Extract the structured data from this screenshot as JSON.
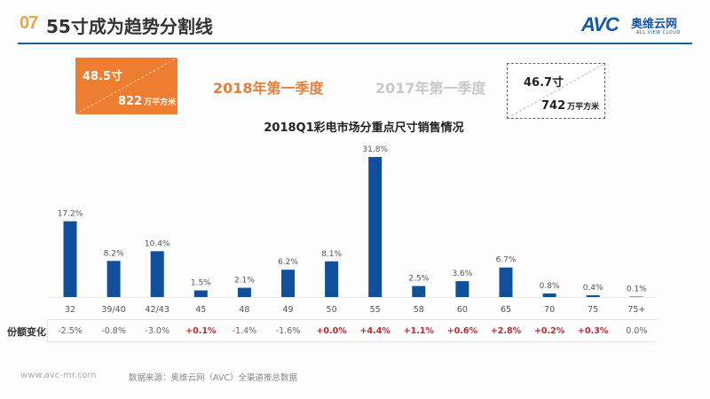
{
  "header": {
    "number": "07",
    "title": "55寸成为趋势分割线"
  },
  "logo": {
    "mark": "AVC",
    "name_cn": "奥维云网",
    "name_en": "ALL VIEW CLOUD"
  },
  "summary": {
    "q2018": {
      "label": "2018年第一季度",
      "avg_size": "48.5寸",
      "area_value": "822",
      "area_unit": "万平方米",
      "color": "#ed7d31"
    },
    "q2017": {
      "label": "2017年第一季度",
      "avg_size": "46.7寸",
      "area_value": "742",
      "area_unit": "万平方米"
    }
  },
  "chart_data": {
    "type": "bar",
    "title": "2018Q1彩电市场分重点尺寸销售情况",
    "xlabel": "",
    "ylabel": "",
    "ylim": [
      0,
      32
    ],
    "grid": false,
    "bar_color": "#0f4f9c",
    "categories": [
      "32",
      "39/40",
      "42/43",
      "45",
      "48",
      "49",
      "50",
      "55",
      "58",
      "60",
      "65",
      "70",
      "75",
      "75+"
    ],
    "values": [
      17.2,
      8.2,
      10.4,
      1.5,
      2.1,
      6.2,
      8.1,
      31.8,
      2.5,
      3.6,
      6.7,
      0.8,
      0.4,
      0.1
    ],
    "value_labels": [
      "17.2%",
      "8.2%",
      "10.4%",
      "1.5%",
      "2.1%",
      "6.2%",
      "8.1%",
      "31.8%",
      "2.5%",
      "3.6%",
      "6.7%",
      "0.8%",
      "0.4%",
      "0.1%"
    ],
    "share_change": {
      "label": "份额变化",
      "values": [
        -2.5,
        -0.8,
        -3.0,
        0.1,
        -1.4,
        -1.6,
        0.0,
        4.4,
        1.1,
        0.6,
        2.8,
        0.2,
        0.3,
        0.0
      ],
      "labels": [
        "-2.5%",
        "-0.8%",
        "-3.0%",
        "+0.1%",
        "-1.4%",
        "-1.6%",
        "+0.0%",
        "+4.4%",
        "+1.1%",
        "+0.6%",
        "+2.8%",
        "+0.2%",
        "+0.3%",
        "0.0%"
      ],
      "positive_color": "#c0282d",
      "neutral_color": "#666666"
    }
  },
  "footer": {
    "url": "www.avc-mr.com",
    "source": "数据来源：奥维云网（AVC）全渠道推总数据"
  }
}
